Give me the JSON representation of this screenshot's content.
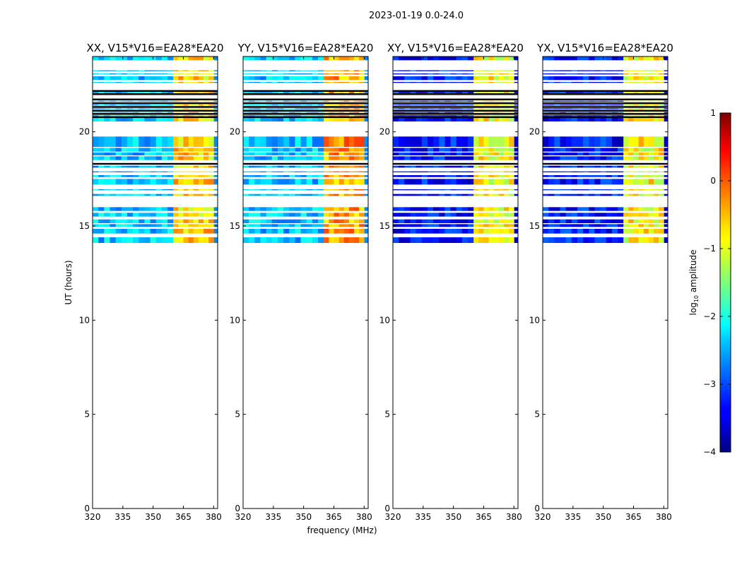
{
  "suptitle": "2023-01-19 0.0-24.0",
  "xlabel": "frequency (MHz)",
  "ylabel": "UT (hours)",
  "colorbar": {
    "label_base": "log",
    "label_sub": "10",
    "label_rest": " amplitude",
    "range": [
      -4,
      1
    ],
    "ticks": [
      "1",
      "0",
      "−1",
      "−2",
      "−3",
      "−4"
    ],
    "tick_values": [
      1,
      0,
      -1,
      -2,
      -3,
      -4
    ],
    "colormap": "jet"
  },
  "chart_data": [
    {
      "type": "heatmap",
      "title": "XX, V15*V16=EA28*EA20",
      "xlabel": "frequency (MHz)",
      "ylabel": "UT (hours)",
      "xlim": [
        320,
        382
      ],
      "ylim": [
        0,
        24
      ],
      "x_ticks": [
        "320",
        "335",
        "350",
        "365",
        "380"
      ],
      "x_tick_values": [
        320,
        335,
        350,
        365,
        380
      ],
      "y_ticks": [
        "0",
        "5",
        "10",
        "15",
        "20"
      ],
      "y_tick_values": [
        0,
        5,
        10,
        15,
        20
      ],
      "data_time_range_hours": [
        14.1,
        24.0
      ],
      "rfi_band_mhz": [
        360,
        380
      ],
      "background_log10_amplitude": -2.4,
      "rfi_log10_amplitude": -0.7
    },
    {
      "type": "heatmap",
      "title": "YY, V15*V16=EA28*EA20",
      "xlabel": "frequency (MHz)",
      "ylabel": "UT (hours)",
      "xlim": [
        320,
        382
      ],
      "ylim": [
        0,
        24
      ],
      "x_ticks": [
        "320",
        "335",
        "350",
        "365",
        "380"
      ],
      "x_tick_values": [
        320,
        335,
        350,
        365,
        380
      ],
      "y_ticks": [
        "0",
        "5",
        "10",
        "15",
        "20"
      ],
      "y_tick_values": [
        0,
        5,
        10,
        15,
        20
      ],
      "data_time_range_hours": [
        14.1,
        24.0
      ],
      "rfi_band_mhz": [
        360,
        380
      ],
      "background_log10_amplitude": -2.4,
      "rfi_log10_amplitude": -0.4
    },
    {
      "type": "heatmap",
      "title": "XY, V15*V16=EA28*EA20",
      "xlabel": "frequency (MHz)",
      "ylabel": "UT (hours)",
      "xlim": [
        320,
        382
      ],
      "ylim": [
        0,
        24
      ],
      "x_ticks": [
        "320",
        "335",
        "350",
        "365",
        "380"
      ],
      "x_tick_values": [
        320,
        335,
        350,
        365,
        380
      ],
      "y_ticks": [
        "0",
        "5",
        "10",
        "15",
        "20"
      ],
      "y_tick_values": [
        0,
        5,
        10,
        15,
        20
      ],
      "data_time_range_hours": [
        14.1,
        24.0
      ],
      "rfi_band_mhz": [
        360,
        380
      ],
      "background_log10_amplitude": -3.3,
      "rfi_log10_amplitude": -0.9
    },
    {
      "type": "heatmap",
      "title": "YX, V15*V16=EA28*EA20",
      "xlabel": "frequency (MHz)",
      "ylabel": "UT (hours)",
      "xlim": [
        320,
        382
      ],
      "ylim": [
        0,
        24
      ],
      "x_ticks": [
        "320",
        "335",
        "350",
        "365",
        "380"
      ],
      "x_tick_values": [
        320,
        335,
        350,
        365,
        380
      ],
      "y_ticks": [
        "0",
        "5",
        "10",
        "15",
        "20"
      ],
      "y_tick_values": [
        0,
        5,
        10,
        15,
        20
      ],
      "data_time_range_hours": [
        14.1,
        24.0
      ],
      "rfi_band_mhz": [
        360,
        380
      ],
      "background_log10_amplitude": -3.3,
      "rfi_log10_amplitude": -0.9
    }
  ]
}
